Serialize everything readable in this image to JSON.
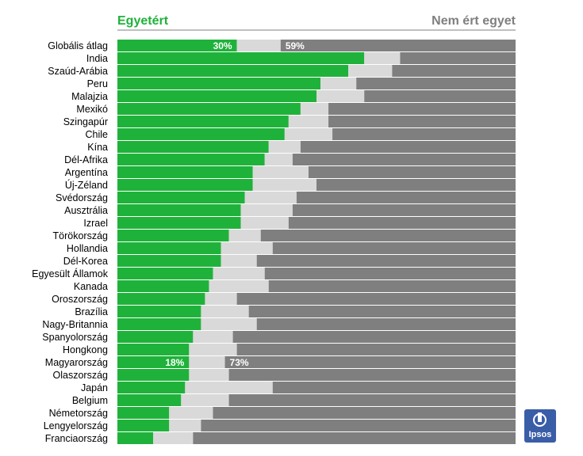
{
  "legend": {
    "agree": "Egyetért",
    "disagree": "Nem ért egyet"
  },
  "brand": {
    "name": "Ipsos"
  },
  "colors": {
    "agree": "#1fb23a",
    "neutral": "#d9d9d9",
    "disagree": "#7f7f7f",
    "brand": "#3a5da8"
  },
  "chart_data": {
    "type": "bar",
    "orientation": "horizontal-stacked-100",
    "series": [
      {
        "name": "Egyetért",
        "values": [
          30,
          62,
          58,
          51,
          50,
          46,
          43,
          42,
          38,
          37,
          34,
          34,
          32,
          31,
          31,
          28,
          26,
          26,
          24,
          23,
          22,
          21,
          21,
          19,
          18,
          18,
          18,
          17,
          16,
          13,
          13,
          9
        ]
      },
      {
        "name": "Nem ért egyet",
        "values": [
          59,
          29,
          31,
          40,
          38,
          47,
          47,
          46,
          54,
          56,
          52,
          50,
          55,
          56,
          57,
          64,
          61,
          65,
          63,
          62,
          70,
          67,
          65,
          71,
          70,
          73,
          72,
          61,
          72,
          76,
          79,
          81
        ]
      }
    ],
    "categories": [
      "Globális átlag",
      "India",
      "Szaúd-Arábia",
      "Peru",
      "Malajzia",
      "Mexikó",
      "Szingapúr",
      "Chile",
      "Kína",
      "Dél-Afrika",
      "Argentína",
      "Új-Zéland",
      "Svédország",
      "Ausztrália",
      "Izrael",
      "Törökország",
      "Hollandia",
      "Dél-Korea",
      "Egyesült Államok",
      "Kanada",
      "Oroszország",
      "Brazília",
      "Nagy-Britannia",
      "Spanyolország",
      "Hongkong",
      "Magyarország",
      "Olaszország",
      "Japán",
      "Belgium",
      "Németország",
      "Lengyelország",
      "Franciaország"
    ],
    "data_labels": [
      {
        "category": "Globális átlag",
        "agree": "30%",
        "disagree": "59%"
      },
      {
        "category": "Magyarország",
        "agree": "18%",
        "disagree": "73%"
      }
    ]
  }
}
